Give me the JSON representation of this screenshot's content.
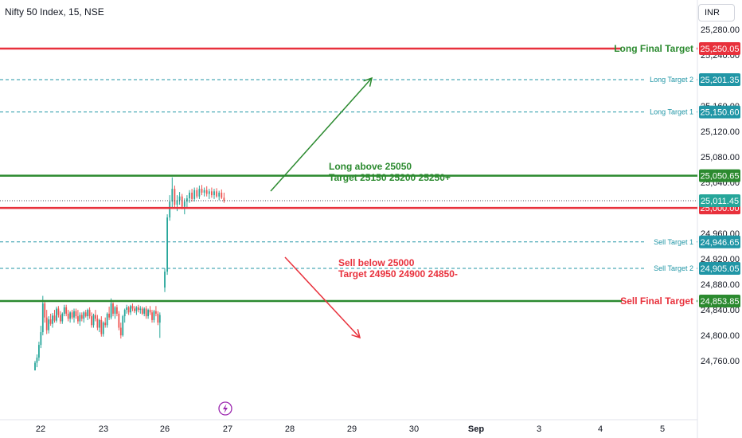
{
  "header": {
    "symbol_title": "Nifty 50 Index, 15, NSE",
    "currency": "INR"
  },
  "colors": {
    "red": "#e8313c",
    "green": "#2b8a2f",
    "teal": "#2196a6",
    "up_candle": "#26a69a",
    "down_candle": "#ef5350",
    "price_label_dark": "#434651",
    "event_icon": "#9c27b0"
  },
  "chart_data": {
    "type": "candlestick",
    "instrument": "Nifty 50 Index",
    "timeframe": "15",
    "exchange": "NSE",
    "y_axis": {
      "range": [
        24745,
        25300
      ],
      "ticks": [
        "25,280.00",
        "25,240.00",
        "25,160.00",
        "25,120.00",
        "25,080.00",
        "25,040.00",
        "24,960.00",
        "24,920.00",
        "24,880.00",
        "24,840.00",
        "24,800.00",
        "24,760.00"
      ]
    },
    "x_axis": {
      "ticks": [
        "22",
        "23",
        "26",
        "27",
        "28",
        "29",
        "30",
        "Sep",
        "3",
        "4",
        "5"
      ]
    },
    "current_price": {
      "value": 25011.45,
      "label": "25,011.45"
    },
    "levels": [
      {
        "name": "Long Final Target",
        "label": "Long Final Target",
        "value": 25250.05,
        "price_label": "25,250.05",
        "style": "solid",
        "color": "#e8313c",
        "label_color": "#2b8a2f"
      },
      {
        "name": "Long Target 2",
        "label": "Long Target 2",
        "value": 25201.35,
        "price_label": "25,201.35",
        "style": "dashed",
        "color": "#2196a6",
        "label_color": "#2196a6"
      },
      {
        "name": "Long Target 1",
        "label": "Long Target 1",
        "value": 25150.6,
        "price_label": "25,150.60",
        "style": "dashed",
        "color": "#2196a6",
        "label_color": "#2196a6"
      },
      {
        "name": "Long trigger",
        "label": "",
        "value": 25050.65,
        "price_label": "25,050.65",
        "style": "solid",
        "color": "#2b8a2f",
        "label_color": "#2b8a2f"
      },
      {
        "name": "Sell trigger",
        "label": "",
        "value": 25000.0,
        "price_label": "25,000.00",
        "style": "solid",
        "color": "#e8313c",
        "label_color": "#e8313c"
      },
      {
        "name": "Sell Target 1",
        "label": "Sell Target 1",
        "value": 24946.65,
        "price_label": "24,946.65",
        "style": "dashed",
        "color": "#2196a6",
        "label_color": "#2196a6"
      },
      {
        "name": "Sell Target 2",
        "label": "Sell Target 2",
        "value": 24905.05,
        "price_label": "24,905.05",
        "style": "dashed",
        "color": "#2196a6",
        "label_color": "#2196a6"
      },
      {
        "name": "Sell Final Target",
        "label": "Sell Final Target",
        "value": 24853.85,
        "price_label": "24,853.85",
        "style": "solid",
        "color": "#2b8a2f",
        "label_color": "#e8313c"
      }
    ],
    "annotations": [
      {
        "lines": [
          "Long above 25050",
          "Target 25150 25200 25250+"
        ],
        "color": "#2b8a2f"
      },
      {
        "lines": [
          "Sell below 25000",
          "Target 24950 24900 24850-"
        ],
        "color": "#e8313c"
      }
    ],
    "candles": [
      [
        24745,
        24760,
        24745,
        24757
      ],
      [
        24757,
        24770,
        24750,
        24765
      ],
      [
        24765,
        24790,
        24760,
        24785
      ],
      [
        24785,
        24815,
        24780,
        24805
      ],
      [
        24805,
        24862,
        24800,
        24850
      ],
      [
        24850,
        24855,
        24820,
        24828
      ],
      [
        24828,
        24840,
        24802,
        24808
      ],
      [
        24808,
        24830,
        24803,
        24825
      ],
      [
        24825,
        24834,
        24815,
        24818
      ],
      [
        24818,
        24835,
        24812,
        24831
      ],
      [
        24831,
        24840,
        24820,
        24823
      ],
      [
        24823,
        24845,
        24820,
        24842
      ],
      [
        24842,
        24846,
        24828,
        24832
      ],
      [
        24832,
        24838,
        24818,
        24822
      ],
      [
        24822,
        24836,
        24818,
        24834
      ],
      [
        24834,
        24848,
        24830,
        24844
      ],
      [
        24844,
        24848,
        24830,
        24834
      ],
      [
        24834,
        24840,
        24822,
        24826
      ],
      [
        24826,
        24838,
        24820,
        24836
      ],
      [
        24836,
        24840,
        24825,
        24828
      ],
      [
        24828,
        24842,
        24820,
        24838
      ],
      [
        24838,
        24842,
        24826,
        24830
      ],
      [
        24830,
        24840,
        24818,
        24822
      ],
      [
        24822,
        24836,
        24815,
        24832
      ],
      [
        24832,
        24836,
        24822,
        24826
      ],
      [
        24826,
        24838,
        24820,
        24836
      ],
      [
        24836,
        24840,
        24828,
        24830
      ],
      [
        24830,
        24842,
        24824,
        24840
      ],
      [
        24840,
        24844,
        24826,
        24830
      ],
      [
        24830,
        24836,
        24812,
        24816
      ],
      [
        24816,
        24834,
        24812,
        24832
      ],
      [
        24832,
        24840,
        24822,
        24826
      ],
      [
        24826,
        24832,
        24808,
        24812
      ],
      [
        24812,
        24826,
        24805,
        24824
      ],
      [
        24824,
        24830,
        24798,
        24802
      ],
      [
        24802,
        24822,
        24798,
        24820
      ],
      [
        24820,
        24828,
        24812,
        24816
      ],
      [
        24816,
        24836,
        24812,
        24834
      ],
      [
        24834,
        24845,
        24824,
        24828
      ],
      [
        24828,
        24858,
        24825,
        24850
      ],
      [
        24850,
        24852,
        24830,
        24834
      ],
      [
        24834,
        24846,
        24826,
        24844
      ],
      [
        24844,
        24848,
        24830,
        24834
      ],
      [
        24834,
        24838,
        24808,
        24812
      ],
      [
        24812,
        24820,
        24795,
        24800
      ],
      [
        24800,
        24832,
        24798,
        24830
      ],
      [
        24830,
        24842,
        24820,
        24840
      ],
      [
        24840,
        24848,
        24834,
        24844
      ],
      [
        24844,
        24846,
        24832,
        24836
      ],
      [
        24836,
        24848,
        24832,
        24846
      ],
      [
        24846,
        24850,
        24838,
        24842
      ],
      [
        24842,
        24846,
        24835,
        24838
      ],
      [
        24838,
        24846,
        24832,
        24844
      ],
      [
        24844,
        24848,
        24836,
        24840
      ],
      [
        24840,
        24846,
        24834,
        24842
      ],
      [
        24842,
        24845,
        24832,
        24834
      ],
      [
        24834,
        24844,
        24830,
        24842
      ],
      [
        24842,
        24846,
        24826,
        24830
      ],
      [
        24830,
        24842,
        24826,
        24840
      ],
      [
        24840,
        24846,
        24832,
        24836
      ],
      [
        24836,
        24840,
        24820,
        24824
      ],
      [
        24824,
        24840,
        24820,
        24838
      ],
      [
        24838,
        24846,
        24830,
        24834
      ],
      [
        24834,
        24838,
        24816,
        24820
      ],
      [
        24820,
        24836,
        24796,
        24832
      ],
      [
        24875,
        24905,
        24868,
        24900
      ],
      [
        24900,
        24990,
        24895,
        24985
      ],
      [
        24985,
        25020,
        24980,
        25010
      ],
      [
        25010,
        25048,
        25000,
        25030
      ],
      [
        25030,
        25035,
        25000,
        25005
      ],
      [
        25005,
        25020,
        24995,
        25012
      ],
      [
        25012,
        25025,
        25005,
        25018
      ],
      [
        25018,
        25022,
        24998,
        25002
      ],
      [
        25002,
        25015,
        24990,
        25010
      ],
      [
        25010,
        25020,
        25000,
        25015
      ],
      [
        25015,
        25028,
        25008,
        25024
      ],
      [
        25024,
        25030,
        25010,
        25014
      ],
      [
        25014,
        25032,
        25010,
        25028
      ],
      [
        25028,
        25032,
        25015,
        25018
      ],
      [
        25018,
        25035,
        25014,
        25030
      ],
      [
        25030,
        25036,
        25020,
        25024
      ],
      [
        25024,
        25032,
        25018,
        25028
      ],
      [
        25028,
        25034,
        25018,
        25022
      ],
      [
        25022,
        25030,
        25014,
        25026
      ],
      [
        25026,
        25032,
        25016,
        25020
      ],
      [
        25020,
        25030,
        25014,
        25026
      ],
      [
        25026,
        25031,
        25016,
        25018
      ],
      [
        25018,
        25027,
        25012,
        25024
      ],
      [
        25024,
        25029,
        25014,
        25016
      ],
      [
        25016,
        25024,
        25008,
        25011
      ]
    ]
  }
}
